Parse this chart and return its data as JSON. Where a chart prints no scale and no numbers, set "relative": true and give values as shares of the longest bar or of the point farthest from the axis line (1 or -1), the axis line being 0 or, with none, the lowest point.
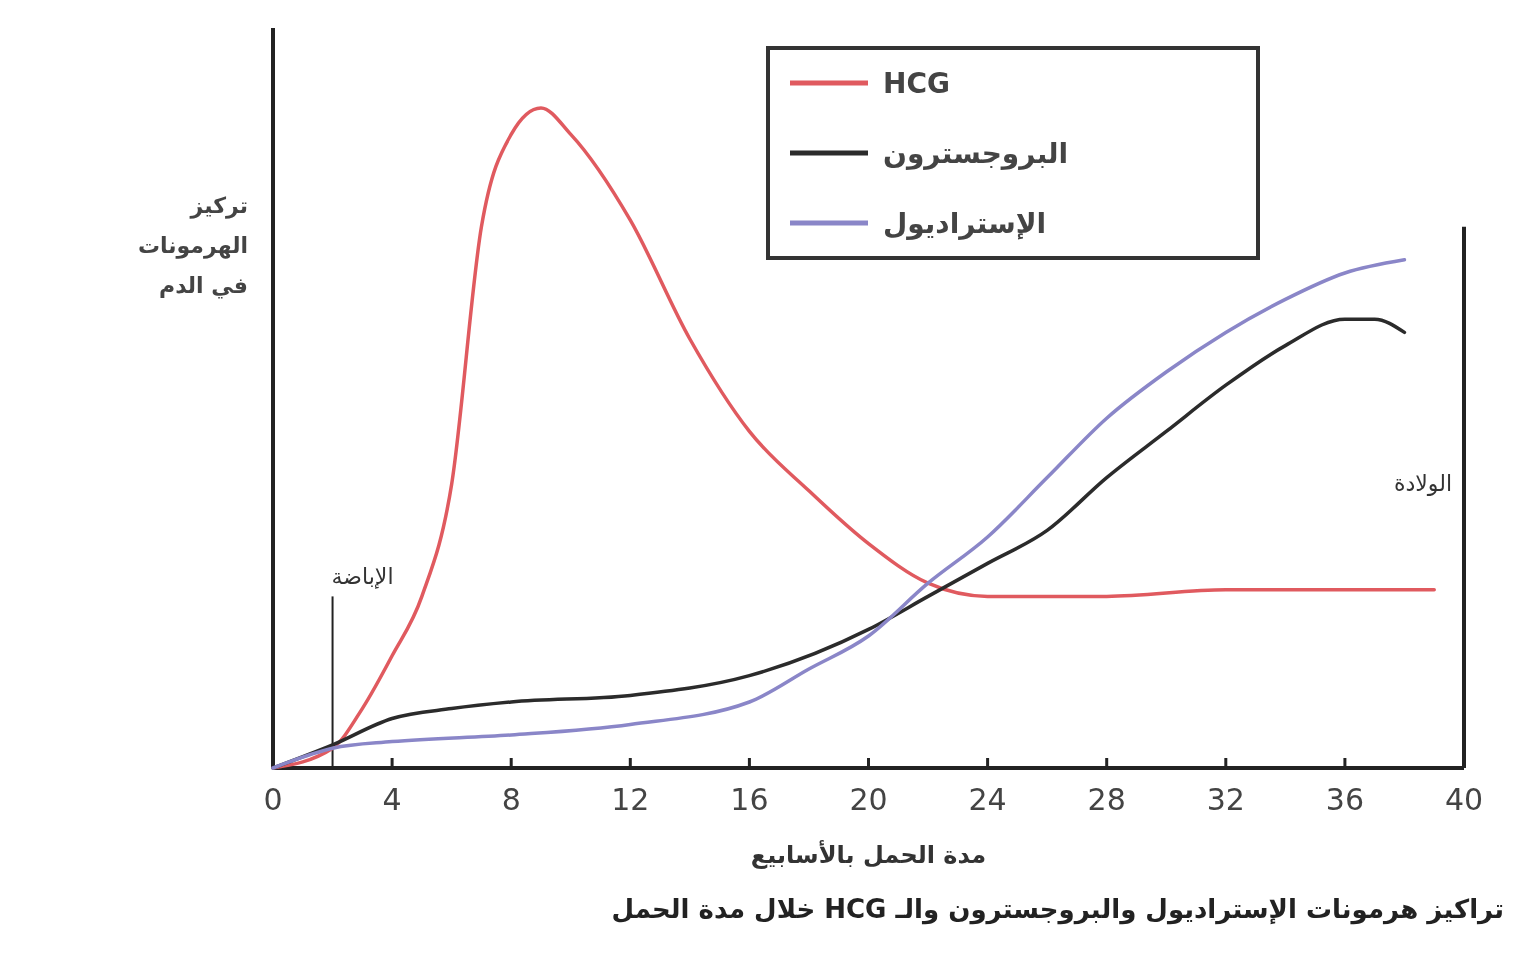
{
  "chart_data": {
    "type": "line",
    "title": "تراكيز هرمونات الإستراديول والبروجسترون والـ HCG خلال مدة الحمل",
    "xlabel": "مدة الحمل بالأسابيع",
    "ylabel": "تركيز الهرمونات في الدم",
    "relative": true,
    "x": [
      0,
      2,
      3,
      4,
      5,
      6,
      7,
      8,
      9,
      10,
      12,
      14,
      16,
      18,
      20,
      22,
      24,
      28,
      32,
      36,
      39
    ],
    "xlim": [
      0,
      40
    ],
    "xticks": [
      0,
      4,
      8,
      12,
      16,
      20,
      24,
      28,
      32,
      36,
      40
    ],
    "series": [
      {
        "name": "HCG",
        "color": "#e05a5f",
        "values": [
          0,
          0.03,
          0.09,
          0.17,
          0.26,
          0.43,
          0.82,
          0.96,
          1,
          0.96,
          0.83,
          0.65,
          0.51,
          0.42,
          0.34,
          0.28,
          0.26,
          0.26,
          0.27,
          0.27,
          0.27
        ]
      },
      {
        "name": "البروجسترون",
        "color": "#2b2b2b",
        "x": [
          0,
          2,
          4,
          6,
          8,
          12,
          16,
          20,
          22,
          24,
          26,
          28,
          30,
          32,
          34,
          36,
          37,
          38
        ],
        "values": [
          0,
          0.035,
          0.075,
          0.09,
          0.1,
          0.11,
          0.14,
          0.21,
          0.26,
          0.31,
          0.36,
          0.44,
          0.51,
          0.58,
          0.64,
          0.68,
          0.68,
          0.66
        ]
      },
      {
        "name": "الإستراديول",
        "color": "#8a86c8",
        "x": [
          0,
          2,
          4,
          8,
          12,
          16,
          18,
          20,
          22,
          24,
          26,
          28,
          30,
          32,
          34,
          36,
          38
        ],
        "values": [
          0,
          0.03,
          0.04,
          0.05,
          0.066,
          0.1,
          0.15,
          0.2,
          0.28,
          0.35,
          0.44,
          0.53,
          0.6,
          0.66,
          0.71,
          0.75,
          0.77
        ]
      }
    ],
    "ref_lines": [
      {
        "axis": "x",
        "value": 2,
        "label": "الإباضة",
        "color": "#222222"
      },
      {
        "axis": "x",
        "value": 40,
        "label": "الولادة",
        "color": "#222222"
      }
    ],
    "legend": "top right",
    "grid": false,
    "marker": "none",
    "line_style": "solid"
  }
}
